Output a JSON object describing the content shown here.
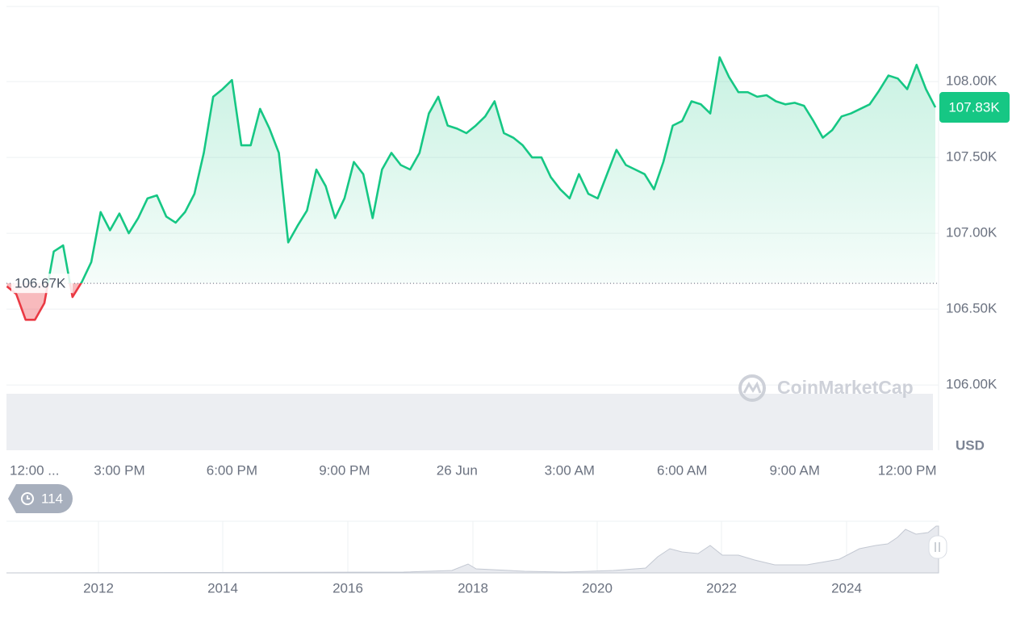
{
  "chart_data": {
    "type": "line",
    "color": "#16c784",
    "below_color": "#ea3943",
    "currency": "USD",
    "watermark": "CoinMarketCap",
    "badge": 114,
    "categories": [
      "12:00 ...",
      null,
      null,
      null,
      null,
      null,
      null,
      null,
      null,
      null,
      null,
      null,
      "3:00 PM",
      null,
      null,
      null,
      null,
      null,
      null,
      null,
      null,
      null,
      null,
      null,
      "6:00 PM",
      null,
      null,
      null,
      null,
      null,
      null,
      null,
      null,
      null,
      null,
      null,
      "9:00 PM",
      null,
      null,
      null,
      null,
      null,
      null,
      null,
      null,
      null,
      null,
      null,
      "26 Jun",
      null,
      null,
      null,
      null,
      null,
      null,
      null,
      null,
      null,
      null,
      null,
      "3:00 AM",
      null,
      null,
      null,
      null,
      null,
      null,
      null,
      null,
      null,
      null,
      null,
      "6:00 AM",
      null,
      null,
      null,
      null,
      null,
      null,
      null,
      null,
      null,
      null,
      null,
      "9:00 AM",
      null,
      null,
      null,
      null,
      null,
      null,
      null,
      null,
      null,
      null,
      null,
      "12:00 PM",
      null,
      null,
      null
    ],
    "values": [
      106650,
      106600,
      106430,
      106430,
      106540,
      106880,
      106920,
      106580,
      106680,
      106810,
      107140,
      107020,
      107130,
      107000,
      107100,
      107230,
      107250,
      107110,
      107070,
      107140,
      107260,
      107530,
      107900,
      107950,
      108010,
      107580,
      107580,
      107820,
      107690,
      107530,
      106940,
      107050,
      107150,
      107420,
      107310,
      107100,
      107230,
      107470,
      107390,
      107100,
      107420,
      107530,
      107450,
      107420,
      107530,
      107790,
      107900,
      107710,
      107690,
      107660,
      107710,
      107770,
      107870,
      107660,
      107630,
      107580,
      107500,
      107500,
      107370,
      107290,
      107230,
      107390,
      107260,
      107230,
      107390,
      107550,
      107450,
      107420,
      107390,
      107290,
      107470,
      107710,
      107740,
      107870,
      107850,
      107790,
      108160,
      108030,
      107930,
      107930,
      107900,
      107910,
      107870,
      107850,
      107860,
      107840,
      107740,
      107630,
      107680,
      107770,
      107790,
      107820,
      107850,
      107940,
      108040,
      108020,
      107950,
      108110,
      107950,
      107830
    ],
    "ylim": [
      105570,
      108495
    ],
    "yticks": [
      {
        "value": 106000,
        "label": "106.00K"
      },
      {
        "value": 106500,
        "label": "106.50K"
      },
      {
        "value": 107000,
        "label": "107.00K"
      },
      {
        "value": 107500,
        "label": "107.50K"
      },
      {
        "value": 108000,
        "label": "108.00K"
      }
    ],
    "grid": true,
    "reference": {
      "value": 106670,
      "label": "106.67K"
    },
    "current_price": {
      "value": 107830,
      "label": "107.83K"
    },
    "navigator_labels": [
      "2012",
      "2014",
      "2016",
      "2018",
      "2020",
      "2022",
      "2024"
    ]
  }
}
